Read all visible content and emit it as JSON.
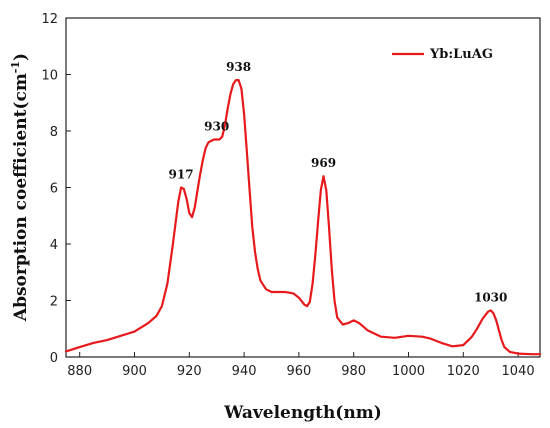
{
  "chart_data": {
    "type": "line",
    "xlabel": "Wavelength(nm)",
    "ylabel": "Absorption coefficient(cm",
    "ylabel_sup": "-1",
    "ylabel_close": ")",
    "xlim": [
      875,
      1048
    ],
    "ylim": [
      0,
      12
    ],
    "xticks": [
      880,
      900,
      920,
      940,
      960,
      980,
      1000,
      1020,
      1040
    ],
    "yticks": [
      0,
      2,
      4,
      6,
      8,
      10,
      12
    ],
    "grid": false,
    "legend_position": "top-right",
    "line_color": "#e8191b",
    "series": [
      {
        "name": "Yb:LuAG",
        "x": [
          875,
          880,
          885,
          890,
          895,
          900,
          905,
          908,
          910,
          912,
          914,
          916,
          917,
          918,
          919,
          920,
          921,
          922,
          923,
          924,
          925,
          926,
          927,
          928,
          929,
          930,
          931,
          932,
          933,
          934,
          935,
          936,
          937,
          938,
          939,
          940,
          941,
          942,
          943,
          944,
          945,
          946,
          948,
          950,
          952,
          955,
          958,
          960,
          962,
          963,
          964,
          965,
          966,
          967,
          968,
          969,
          970,
          971,
          972,
          973,
          974,
          976,
          978,
          980,
          982,
          985,
          990,
          995,
          1000,
          1005,
          1008,
          1012,
          1016,
          1020,
          1023,
          1025,
          1027,
          1029,
          1030,
          1031,
          1032,
          1033,
          1034,
          1035,
          1037,
          1040,
          1045,
          1048
        ],
        "y": [
          0.2,
          0.35,
          0.5,
          0.6,
          0.75,
          0.9,
          1.2,
          1.45,
          1.8,
          2.6,
          4.0,
          5.5,
          6.0,
          5.95,
          5.6,
          5.1,
          4.95,
          5.3,
          5.9,
          6.5,
          7.0,
          7.4,
          7.6,
          7.65,
          7.7,
          7.7,
          7.7,
          7.8,
          8.2,
          8.8,
          9.3,
          9.65,
          9.8,
          9.8,
          9.5,
          8.6,
          7.3,
          5.9,
          4.6,
          3.7,
          3.1,
          2.7,
          2.4,
          2.3,
          2.3,
          2.3,
          2.25,
          2.1,
          1.85,
          1.8,
          1.95,
          2.6,
          3.6,
          4.8,
          5.9,
          6.4,
          5.9,
          4.6,
          3.1,
          2.0,
          1.4,
          1.15,
          1.2,
          1.3,
          1.2,
          0.95,
          0.72,
          0.68,
          0.75,
          0.72,
          0.65,
          0.5,
          0.38,
          0.42,
          0.7,
          1.0,
          1.35,
          1.6,
          1.65,
          1.55,
          1.3,
          0.95,
          0.6,
          0.35,
          0.18,
          0.12,
          0.1,
          0.1
        ]
      }
    ],
    "annotations": [
      {
        "text": "917",
        "x": 917,
        "y": 6.0
      },
      {
        "text": "930",
        "x": 930,
        "y": 7.7
      },
      {
        "text": "938",
        "x": 938,
        "y": 9.8
      },
      {
        "text": "969",
        "x": 969,
        "y": 6.4
      },
      {
        "text": "1030",
        "x": 1030,
        "y": 1.65
      }
    ]
  }
}
